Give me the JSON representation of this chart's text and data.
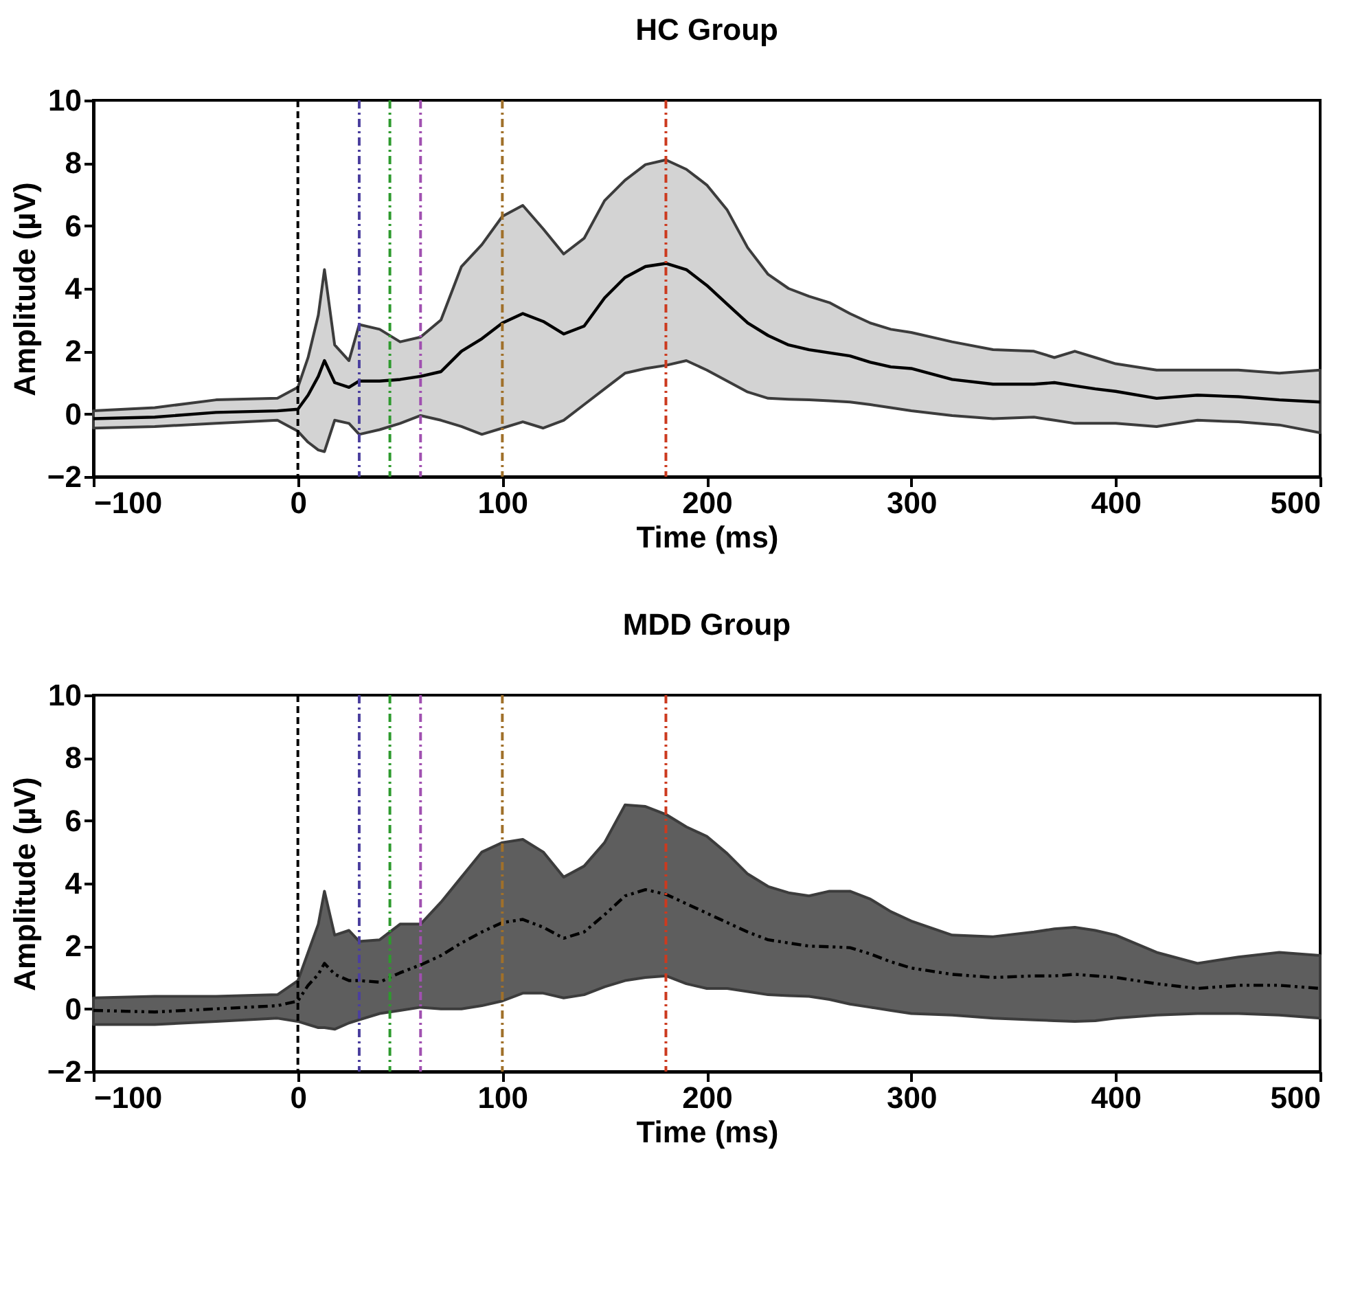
{
  "chart_data": [
    {
      "type": "line",
      "title": "HC Group",
      "xlabel": "Time (ms)",
      "ylabel": "Amplitude (µV)",
      "xlim": [
        -100,
        500
      ],
      "xticks": [
        -100,
        0,
        100,
        200,
        300,
        400,
        500
      ],
      "ylim": [
        -2,
        10
      ],
      "yticks": [
        -2,
        0,
        2,
        4,
        6,
        8,
        10
      ],
      "grid": false,
      "x": [
        -100,
        -70,
        -40,
        -10,
        0,
        5,
        10,
        13,
        18,
        25,
        30,
        40,
        50,
        60,
        70,
        80,
        90,
        100,
        110,
        120,
        130,
        140,
        150,
        160,
        170,
        180,
        190,
        200,
        210,
        220,
        230,
        240,
        250,
        260,
        270,
        280,
        290,
        300,
        320,
        340,
        360,
        370,
        380,
        390,
        400,
        420,
        440,
        460,
        480,
        500
      ],
      "series": [
        {
          "color": "#000000",
          "line_style": "solid",
          "values": [
            -0.15,
            -0.1,
            0.05,
            0.1,
            0.15,
            0.6,
            1.2,
            1.7,
            1.0,
            0.85,
            1.05,
            1.05,
            1.1,
            1.2,
            1.35,
            2.0,
            2.4,
            2.9,
            3.2,
            2.95,
            2.55,
            2.8,
            3.7,
            4.35,
            4.7,
            4.8,
            4.6,
            4.1,
            3.5,
            2.9,
            2.5,
            2.2,
            2.05,
            1.95,
            1.85,
            1.65,
            1.5,
            1.45,
            1.1,
            0.95,
            0.95,
            1.0,
            0.9,
            0.8,
            0.72,
            0.5,
            0.6,
            0.55,
            0.45,
            0.38
          ],
          "upper": [
            0.1,
            0.2,
            0.45,
            0.5,
            0.85,
            1.8,
            3.15,
            4.6,
            2.2,
            1.7,
            2.85,
            2.7,
            2.3,
            2.45,
            3.0,
            4.7,
            5.4,
            6.3,
            6.65,
            5.9,
            5.1,
            5.6,
            6.8,
            7.45,
            7.95,
            8.1,
            7.8,
            7.3,
            6.5,
            5.3,
            4.45,
            4.0,
            3.75,
            3.55,
            3.2,
            2.9,
            2.7,
            2.6,
            2.3,
            2.05,
            2.0,
            1.8,
            2.0,
            1.8,
            1.6,
            1.4,
            1.4,
            1.4,
            1.3,
            1.4
          ],
          "lower": [
            -0.45,
            -0.4,
            -0.3,
            -0.2,
            -0.55,
            -0.9,
            -1.15,
            -1.2,
            -0.2,
            -0.3,
            -0.65,
            -0.5,
            -0.3,
            -0.05,
            -0.2,
            -0.4,
            -0.65,
            -0.45,
            -0.25,
            -0.45,
            -0.2,
            0.3,
            0.8,
            1.3,
            1.45,
            1.55,
            1.7,
            1.4,
            1.05,
            0.7,
            0.5,
            0.47,
            0.45,
            0.42,
            0.38,
            0.3,
            0.2,
            0.1,
            -0.05,
            -0.15,
            -0.1,
            -0.2,
            -0.3,
            -0.3,
            -0.3,
            -0.4,
            -0.2,
            -0.25,
            -0.35,
            -0.6
          ]
        }
      ],
      "ref_lines": [
        {
          "axis": "x",
          "value": 0,
          "color": "#000000",
          "line_style": "dashed"
        },
        {
          "axis": "x",
          "value": 30,
          "color": "#4b3f9e",
          "line_style": "dotted"
        },
        {
          "axis": "x",
          "value": 45,
          "color": "#2e9a2e",
          "line_style": "dotted"
        },
        {
          "axis": "x",
          "value": 60,
          "color": "#a050b0",
          "line_style": "dotted"
        },
        {
          "axis": "x",
          "value": 100,
          "color": "#a0702a",
          "line_style": "dotted"
        },
        {
          "axis": "x",
          "value": 180,
          "color": "#cc3a1f",
          "line_style": "dotted"
        }
      ]
    },
    {
      "type": "line",
      "title": "MDD Group",
      "xlabel": "Time (ms)",
      "ylabel": "Amplitude (µV)",
      "xlim": [
        -100,
        500
      ],
      "xticks": [
        -100,
        0,
        100,
        200,
        300,
        400,
        500
      ],
      "ylim": [
        -2,
        10
      ],
      "yticks": [
        -2,
        0,
        2,
        4,
        6,
        8,
        10
      ],
      "grid": false,
      "x": [
        -100,
        -70,
        -40,
        -10,
        0,
        5,
        10,
        13,
        18,
        25,
        30,
        40,
        50,
        60,
        70,
        80,
        90,
        100,
        110,
        120,
        130,
        140,
        150,
        160,
        170,
        180,
        190,
        200,
        210,
        220,
        230,
        240,
        250,
        260,
        270,
        280,
        290,
        300,
        320,
        340,
        360,
        370,
        380,
        390,
        400,
        420,
        440,
        460,
        480,
        500
      ],
      "series": [
        {
          "color": "#000000",
          "line_style": "dashed",
          "values": [
            -0.05,
            -0.1,
            0.0,
            0.1,
            0.25,
            0.75,
            1.1,
            1.45,
            1.1,
            0.9,
            0.9,
            0.85,
            1.15,
            1.4,
            1.7,
            2.1,
            2.45,
            2.75,
            2.85,
            2.6,
            2.25,
            2.45,
            3.0,
            3.6,
            3.8,
            3.65,
            3.35,
            3.05,
            2.75,
            2.45,
            2.2,
            2.1,
            2.0,
            1.98,
            1.95,
            1.75,
            1.5,
            1.3,
            1.1,
            1.0,
            1.05,
            1.05,
            1.1,
            1.05,
            1.0,
            0.8,
            0.65,
            0.75,
            0.75,
            0.65
          ],
          "upper": [
            0.35,
            0.4,
            0.4,
            0.45,
            0.9,
            1.8,
            2.7,
            3.75,
            2.35,
            2.5,
            2.15,
            2.2,
            2.7,
            2.7,
            3.4,
            4.2,
            5.0,
            5.3,
            5.4,
            5.0,
            4.2,
            4.55,
            5.3,
            6.5,
            6.45,
            6.2,
            5.8,
            5.5,
            4.95,
            4.3,
            3.9,
            3.7,
            3.6,
            3.75,
            3.75,
            3.5,
            3.1,
            2.8,
            2.35,
            2.3,
            2.45,
            2.55,
            2.6,
            2.5,
            2.35,
            1.8,
            1.45,
            1.65,
            1.8,
            1.7
          ],
          "lower": [
            -0.5,
            -0.5,
            -0.4,
            -0.3,
            -0.4,
            -0.5,
            -0.6,
            -0.6,
            -0.65,
            -0.45,
            -0.35,
            -0.15,
            -0.05,
            0.05,
            0.0,
            0.0,
            0.1,
            0.25,
            0.5,
            0.5,
            0.35,
            0.45,
            0.7,
            0.9,
            1.0,
            1.05,
            0.8,
            0.65,
            0.65,
            0.55,
            0.45,
            0.42,
            0.4,
            0.3,
            0.15,
            0.05,
            -0.05,
            -0.15,
            -0.2,
            -0.3,
            -0.35,
            -0.38,
            -0.4,
            -0.38,
            -0.3,
            -0.2,
            -0.15,
            -0.15,
            -0.2,
            -0.3
          ]
        }
      ],
      "ref_lines": [
        {
          "axis": "x",
          "value": 0,
          "color": "#000000",
          "line_style": "dashed"
        },
        {
          "axis": "x",
          "value": 30,
          "color": "#4b3f9e",
          "line_style": "dotted"
        },
        {
          "axis": "x",
          "value": 45,
          "color": "#2e9a2e",
          "line_style": "dotted"
        },
        {
          "axis": "x",
          "value": 60,
          "color": "#a050b0",
          "line_style": "dotted"
        },
        {
          "axis": "x",
          "value": 100,
          "color": "#a0702a",
          "line_style": "dotted"
        },
        {
          "axis": "x",
          "value": 180,
          "color": "#cc3a1f",
          "line_style": "dotted"
        }
      ]
    }
  ]
}
